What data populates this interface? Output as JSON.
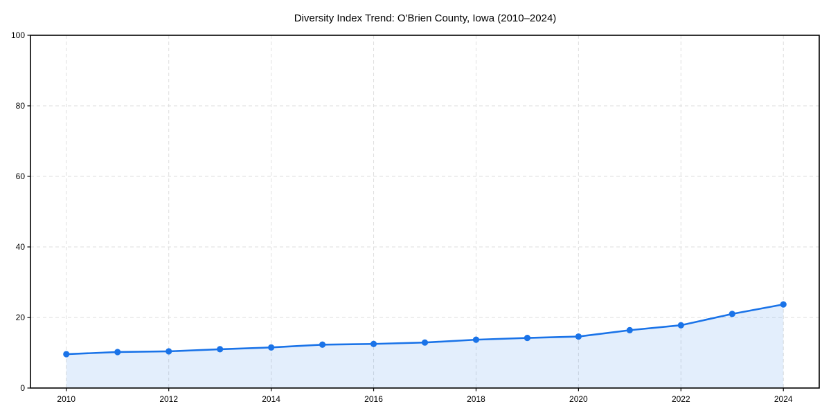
{
  "chart": {
    "title": "Diversity Index Trend: O'Brien County, Iowa (2010–2024)"
  },
  "chart_data": {
    "type": "area",
    "title": "Diversity Index Trend: O'Brien County, Iowa (2010–2024)",
    "xlabel": "",
    "ylabel": "",
    "x": [
      2010,
      2011,
      2012,
      2013,
      2014,
      2015,
      2016,
      2017,
      2018,
      2019,
      2020,
      2021,
      2022,
      2023,
      2024
    ],
    "series": [
      {
        "name": "Diversity Index",
        "values": [
          9.6,
          10.2,
          10.4,
          11.0,
          11.5,
          12.3,
          12.5,
          12.9,
          13.7,
          14.2,
          14.6,
          16.4,
          17.8,
          21.0,
          23.7
        ]
      }
    ],
    "xticks": [
      2010,
      2012,
      2014,
      2016,
      2018,
      2020,
      2022,
      2024
    ],
    "yticks": [
      0,
      20,
      40,
      60,
      80,
      100
    ],
    "xlim": [
      2009.3,
      2024.7
    ],
    "ylim": [
      0,
      100
    ],
    "grid": true,
    "grid_style": "dashed",
    "legend": false,
    "colors": {
      "line": "#1a73e8",
      "marker": "#1a73e8",
      "fill": "rgba(26,115,232,0.12)",
      "grid": "#dedede",
      "spine": "#000000",
      "tick": "#000000",
      "text": "#000000",
      "background": "#ffffff"
    }
  }
}
